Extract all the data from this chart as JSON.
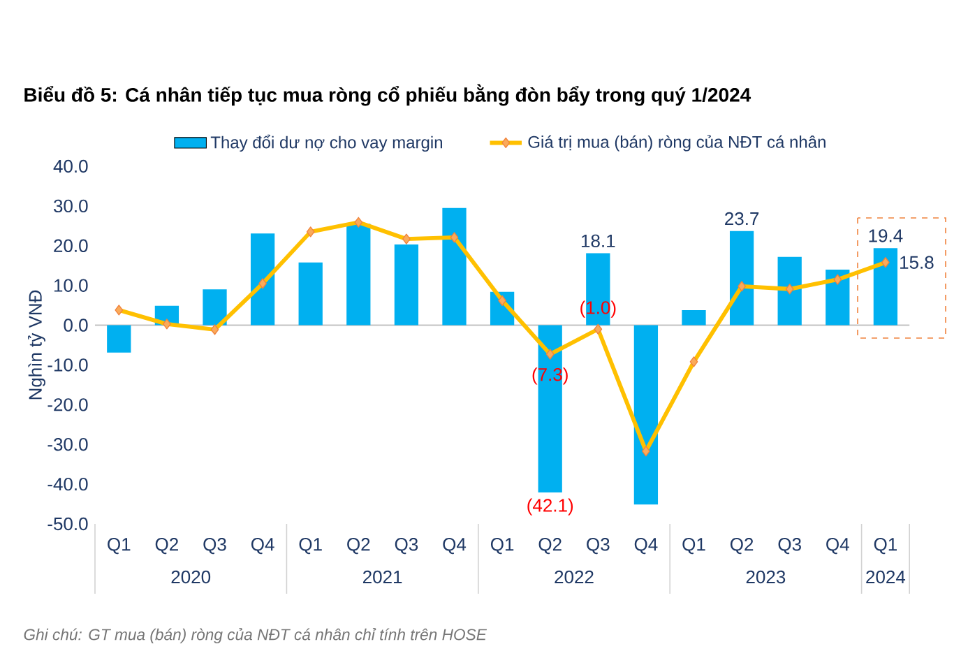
{
  "chart_data": {
    "type": "bar",
    "title": "Biểu đồ 5: Cá nhân tiếp tục mua ròng cổ phiếu bằng đòn bẩy trong quý 1/2024",
    "ylabel": "Nghìn tỷ VNĐ",
    "categories": [
      "Q1",
      "Q2",
      "Q3",
      "Q4",
      "Q1",
      "Q2",
      "Q3",
      "Q4",
      "Q1",
      "Q2",
      "Q3",
      "Q4",
      "Q1",
      "Q2",
      "Q3",
      "Q4",
      "Q1"
    ],
    "series": [
      {
        "name": "Thay đổi dư nợ cho vay margin",
        "type": "bar",
        "color": "#00b0f0",
        "values": [
          -6.9,
          4.9,
          9.0,
          23.1,
          15.8,
          25.5,
          20.3,
          29.5,
          8.4,
          -42.1,
          18.1,
          -45.1,
          3.8,
          23.7,
          17.2,
          14.0,
          19.4
        ],
        "value_labels": [
          null,
          null,
          null,
          null,
          null,
          null,
          null,
          null,
          null,
          "(42.1)",
          "18.1",
          null,
          null,
          "23.7",
          null,
          null,
          "19.4"
        ]
      },
      {
        "name": "Giá trị mua (bán) ròng của NĐT cá nhân",
        "type": "line",
        "color": "#ffc000",
        "values": [
          3.8,
          0.3,
          -1.1,
          10.5,
          23.5,
          25.9,
          21.7,
          22.1,
          6.2,
          -7.3,
          -1.0,
          -31.7,
          -9.2,
          9.8,
          9.1,
          11.5,
          15.8
        ],
        "value_labels": [
          null,
          null,
          null,
          null,
          null,
          null,
          null,
          null,
          null,
          "(7.3)",
          "(1.0)",
          null,
          null,
          null,
          null,
          null,
          "15.8"
        ]
      }
    ],
    "ylim": [
      -50,
      40
    ],
    "yticks": [
      {
        "value": -50,
        "label": "-50.0"
      },
      {
        "value": -40,
        "label": "-40.0"
      },
      {
        "value": -30,
        "label": "-30.0"
      },
      {
        "value": -20,
        "label": "-20.0"
      },
      {
        "value": -10,
        "label": "-10.0"
      },
      {
        "value": 0,
        "label": "0.0"
      },
      {
        "value": 10,
        "label": "10.0"
      },
      {
        "value": 20,
        "label": "20.0"
      },
      {
        "value": 30,
        "label": "30.0"
      },
      {
        "value": 40,
        "label": "40.0"
      }
    ],
    "marker": "diamond",
    "legend": "top",
    "annotations": [
      "2020",
      "2021",
      "2022",
      "2023",
      "2024",
      "Ghi chú: GT mua (bán) ròng của NĐT cá nhân chỉ tính trên HOSE"
    ]
  }
}
